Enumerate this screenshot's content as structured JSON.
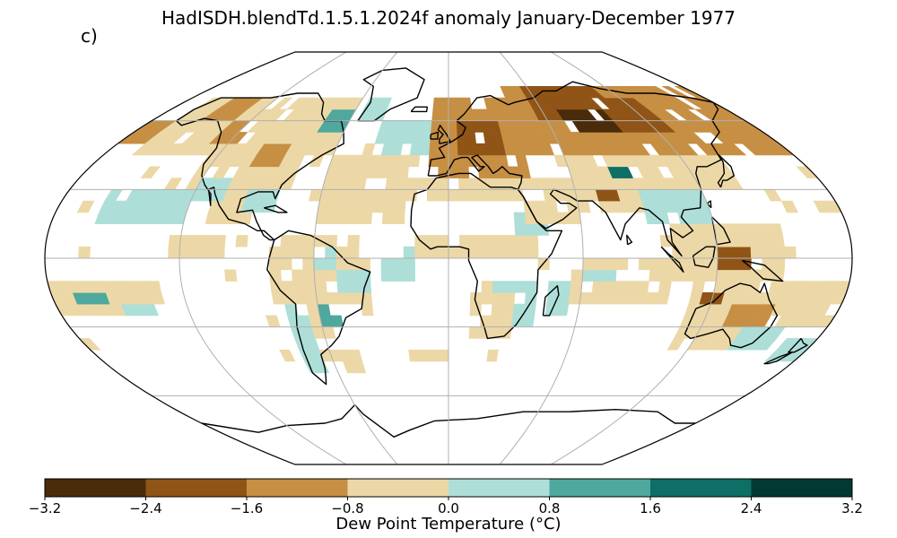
{
  "title": "HadISDH.blendTd.1.5.1.2024f anomaly January-December 1977",
  "panel_label": "c)",
  "colorbar": {
    "label": "Dew Point Temperature (°C)",
    "ticks": [
      "−3.2",
      "−2.4",
      "−1.6",
      "−0.8",
      "0.0",
      "0.8",
      "1.6",
      "2.4",
      "3.2"
    ],
    "tick_values": [
      -3.2,
      -2.4,
      -1.6,
      -0.8,
      0.0,
      0.8,
      1.6,
      2.4,
      3.2
    ],
    "bin_colors": [
      "#4a2b0a",
      "#8f5416",
      "#c68f44",
      "#ecd8a6",
      "#addfd8",
      "#4ea89e",
      "#0d6f66",
      "#013a33"
    ]
  },
  "map": {
    "projection": "Robinson",
    "gridlines": true,
    "coastline_color": "#000000",
    "missing_color": "#ffffff"
  }
}
